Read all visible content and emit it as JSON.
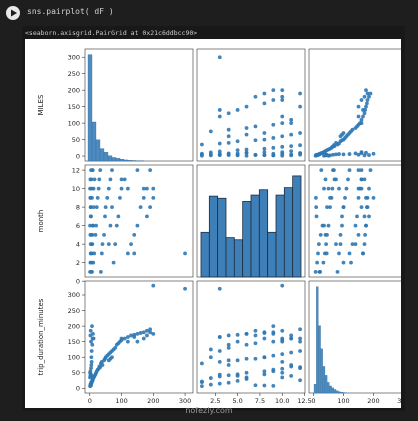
{
  "cell": {
    "code": "sns.pairplot( dF )",
    "output_repr": "<seaborn.axisgrid.PairGrid at 0x21c6ddbcc90>"
  },
  "watermark": "nofezly.com",
  "chart_data": {
    "type": "scatter",
    "variables": [
      "MILES",
      "month",
      "trip_duration_minutes"
    ],
    "axis_labels": {
      "y": [
        "MILES",
        "month",
        "trip_duration_minutes"
      ],
      "x": [
        "MILES",
        "month",
        "trip_duration_minutes"
      ]
    },
    "ticks": {
      "MILES_y": [
        0,
        50,
        100,
        150,
        200,
        250,
        300
      ],
      "month_y": [
        0,
        2,
        4,
        6,
        8,
        10,
        12
      ],
      "trip_y": [
        0,
        50,
        100,
        150,
        200,
        250,
        300
      ],
      "MILES_x": [
        0,
        100,
        200,
        300
      ],
      "month_x": [
        "2.5",
        "5.0",
        "7.5",
        "10.0",
        "12.5"
      ],
      "trip_x": [
        0,
        100,
        200,
        300
      ]
    },
    "ranges": {
      "MILES": [
        -15,
        325
      ],
      "month": [
        0.45,
        12.55
      ],
      "trip": [
        -15,
        345
      ]
    },
    "month_histogram": {
      "bins": [
        "1",
        "2",
        "3",
        "4",
        "5",
        "6",
        "7",
        "8",
        "9",
        "10",
        "11",
        "12"
      ],
      "heights": [
        0.42,
        0.76,
        0.74,
        0.37,
        0.35,
        0.71,
        0.77,
        0.82,
        0.42,
        0.77,
        0.84,
        0.95
      ]
    },
    "hist_miles": [
      60,
      22,
      12,
      7,
      5,
      3,
      2,
      1.5,
      1,
      0.6,
      0.4,
      0.3,
      0.2,
      0.1
    ],
    "hist_trip": [
      5,
      60,
      38,
      25,
      15,
      10,
      6,
      4,
      3,
      2,
      1.3,
      0.8,
      0.5,
      0.3,
      0.2
    ],
    "points": [
      [
        1,
        1,
        7
      ],
      [
        2,
        2,
        12
      ],
      [
        3,
        3,
        15
      ],
      [
        5,
        1,
        20
      ],
      [
        6,
        4,
        18
      ],
      [
        8,
        5,
        24
      ],
      [
        10,
        6,
        30
      ],
      [
        4,
        7,
        10
      ],
      [
        3,
        8,
        9
      ],
      [
        2,
        9,
        8
      ],
      [
        12,
        10,
        35
      ],
      [
        15,
        11,
        40
      ],
      [
        9,
        12,
        26
      ],
      [
        7,
        1,
        22
      ],
      [
        11,
        2,
        33
      ],
      [
        14,
        3,
        38
      ],
      [
        18,
        5,
        45
      ],
      [
        20,
        6,
        50
      ],
      [
        22,
        8,
        55
      ],
      [
        25,
        9,
        60
      ],
      [
        28,
        10,
        63
      ],
      [
        30,
        11,
        70
      ],
      [
        33,
        12,
        68
      ],
      [
        35,
        1,
        80
      ],
      [
        38,
        3,
        85
      ],
      [
        40,
        4,
        75
      ],
      [
        45,
        5,
        90
      ],
      [
        48,
        7,
        95
      ],
      [
        50,
        8,
        100
      ],
      [
        55,
        9,
        105
      ],
      [
        60,
        10,
        110
      ],
      [
        65,
        11,
        115
      ],
      [
        70,
        12,
        120
      ],
      [
        75,
        2,
        125
      ],
      [
        80,
        4,
        130
      ],
      [
        85,
        6,
        140
      ],
      [
        90,
        7,
        145
      ],
      [
        95,
        9,
        150
      ],
      [
        100,
        10,
        155
      ],
      [
        110,
        11,
        160
      ],
      [
        120,
        3,
        165
      ],
      [
        130,
        4,
        170
      ],
      [
        140,
        5,
        172
      ],
      [
        150,
        6,
        175
      ],
      [
        160,
        8,
        178
      ],
      [
        170,
        9,
        180
      ],
      [
        180,
        10,
        185
      ],
      [
        190,
        12,
        190
      ],
      [
        200,
        10,
        330
      ],
      [
        300,
        3,
        320
      ],
      [
        5,
        2,
        100
      ],
      [
        6,
        3,
        120
      ],
      [
        8,
        4,
        140
      ],
      [
        4,
        5,
        150
      ],
      [
        12,
        8,
        160
      ],
      [
        10,
        6,
        175
      ],
      [
        3,
        7,
        185
      ],
      [
        7,
        9,
        200
      ],
      [
        2,
        11,
        170
      ],
      [
        9,
        12,
        160
      ],
      [
        1,
        10,
        50
      ],
      [
        2,
        9,
        55
      ],
      [
        3,
        8,
        45
      ],
      [
        4,
        12,
        65
      ],
      [
        5,
        11,
        75
      ],
      [
        6,
        10,
        85
      ],
      [
        1,
        6,
        35
      ],
      [
        2,
        5,
        40
      ],
      [
        3,
        4,
        42
      ],
      [
        4,
        3,
        44
      ],
      [
        60,
        4,
        90
      ],
      [
        65,
        6,
        95
      ],
      [
        70,
        8,
        100
      ],
      [
        200,
        9,
        175
      ],
      [
        170,
        10,
        160
      ],
      [
        150,
        12,
        150
      ],
      [
        140,
        3,
        165
      ],
      [
        190,
        8,
        180
      ],
      [
        180,
        7,
        170
      ],
      [
        100,
        11,
        160
      ],
      [
        120,
        10,
        150
      ]
    ]
  }
}
